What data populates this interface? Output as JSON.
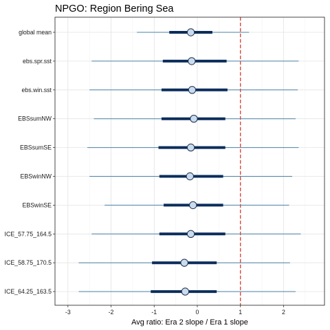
{
  "chart_data": {
    "type": "interval-dot",
    "title": "NPGO: Region Bering Sea",
    "xlabel": "Avg ratio: Era 2 slope / Era 1 slope",
    "ylabel": "",
    "xlim": [
      -3.3,
      2.95
    ],
    "xticks": [
      -3,
      -2,
      -1,
      0,
      1,
      2
    ],
    "grid": true,
    "reference_line": {
      "x": 1,
      "color": "#e03c31",
      "style": "dashed"
    },
    "colors": {
      "whisker": "#4a7fa6",
      "interval": "#0b2d5c",
      "point_fill": "#c9dbef"
    },
    "series": [
      {
        "label": "global mean",
        "low": -1.4,
        "q_low": -0.65,
        "median": -0.15,
        "q_high": 0.35,
        "high": 1.2
      },
      {
        "label": "ebs.spr.sst",
        "low": -2.45,
        "q_low": -0.8,
        "median": -0.13,
        "q_high": 0.68,
        "high": 2.35
      },
      {
        "label": "ebs.win.sst",
        "low": -2.5,
        "q_low": -0.83,
        "median": -0.12,
        "q_high": 0.7,
        "high": 2.33
      },
      {
        "label": "EBSsumNW",
        "low": -2.4,
        "q_low": -0.83,
        "median": -0.08,
        "q_high": 0.65,
        "high": 2.28
      },
      {
        "label": "EBSsumSE",
        "low": -2.55,
        "q_low": -0.9,
        "median": -0.15,
        "q_high": 0.65,
        "high": 2.35
      },
      {
        "label": "EBSwinNW",
        "low": -2.5,
        "q_low": -0.88,
        "median": -0.17,
        "q_high": 0.6,
        "high": 2.2
      },
      {
        "label": "EBSwinSE",
        "low": -2.15,
        "q_low": -0.78,
        "median": -0.1,
        "q_high": 0.6,
        "high": 2.13
      },
      {
        "label": "ICE_57.75_164.5",
        "low": -2.45,
        "q_low": -0.88,
        "median": -0.15,
        "q_high": 0.65,
        "high": 2.4
      },
      {
        "label": "ICE_58.75_170.5",
        "low": -2.75,
        "q_low": -1.05,
        "median": -0.3,
        "q_high": 0.45,
        "high": 2.15
      },
      {
        "label": "ICE_64.25_163.5",
        "low": -2.75,
        "q_low": -1.08,
        "median": -0.28,
        "q_high": 0.45,
        "high": 2.28
      }
    ]
  }
}
